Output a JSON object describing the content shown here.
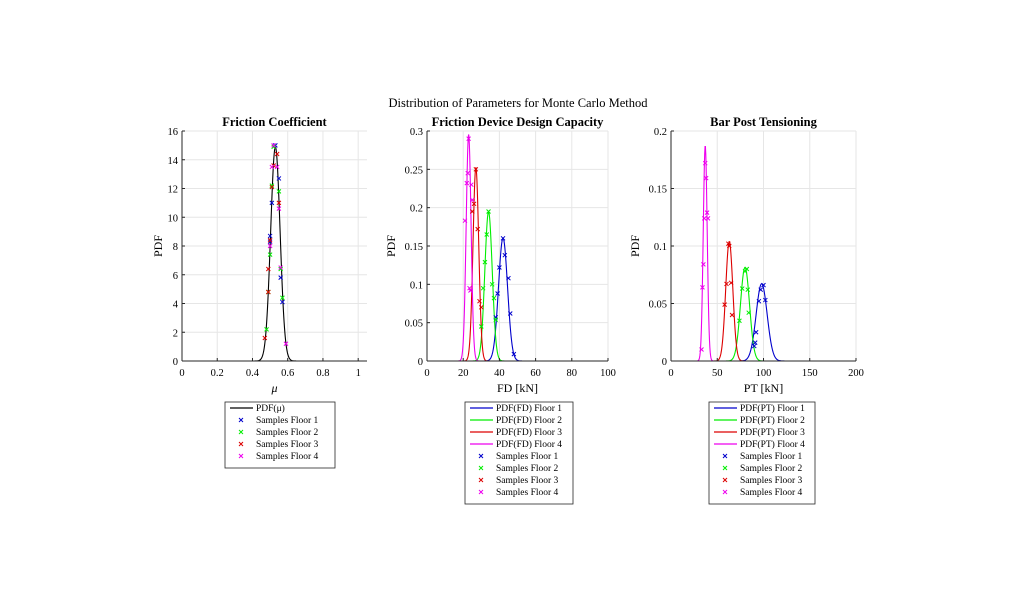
{
  "figure_title": "Distribution of Parameters for Monte Carlo Method",
  "colors": {
    "floor1": "#0000cc",
    "floor2": "#00ee00",
    "floor3": "#dd0000",
    "floor4": "#ee00ee",
    "mu": "#000000",
    "grid": "#e6e6e6"
  },
  "chart_data": [
    {
      "type": "line",
      "title": "Friction Coefficient",
      "xlabel": "μ",
      "ylabel": "PDF",
      "xlim": [
        0,
        1.05
      ],
      "ylim": [
        0,
        16
      ],
      "xticks": [
        0,
        0.2,
        0.4,
        0.6,
        0.8,
        1
      ],
      "xtick_labels": [
        "0",
        "0.2",
        "0.4",
        "0.6",
        "0.8",
        "1"
      ],
      "yticks": [
        0,
        2,
        4,
        6,
        8,
        10,
        12,
        14,
        16
      ],
      "ytick_labels": [
        "0",
        "2",
        "4",
        "6",
        "8",
        "10",
        "12",
        "14",
        "16"
      ],
      "grid": true,
      "series": [
        {
          "name": "PDF(μ)",
          "kind": "pdf",
          "color": "#000000",
          "mean": 0.53,
          "sd": 0.0268,
          "scale": 1,
          "range": [
            0,
            1.05
          ]
        }
      ],
      "samples": [
        {
          "name": "Samples Floor 1",
          "color": "#0000cc",
          "points": [
            [
              0.5,
              8.7
            ],
            [
              0.51,
              11.0
            ],
            [
              0.55,
              12.7
            ],
            [
              0.56,
              5.8
            ],
            [
              0.57,
              4.1
            ],
            [
              0.53,
              15.0
            ],
            [
              0.5,
              8.3
            ]
          ]
        },
        {
          "name": "Samples Floor 2",
          "color": "#00ee00",
          "points": [
            [
              0.48,
              2.2
            ],
            [
              0.49,
              4.8
            ],
            [
              0.5,
              7.4
            ],
            [
              0.51,
              12.2
            ],
            [
              0.55,
              11.8
            ],
            [
              0.56,
              6.4
            ],
            [
              0.57,
              4.4
            ],
            [
              0.52,
              14.9
            ]
          ]
        },
        {
          "name": "Samples Floor 3",
          "color": "#dd0000",
          "points": [
            [
              0.47,
              1.6
            ],
            [
              0.49,
              4.8
            ],
            [
              0.49,
              6.4
            ],
            [
              0.5,
              8.4
            ],
            [
              0.51,
              12.1
            ],
            [
              0.52,
              13.6
            ],
            [
              0.54,
              14.4
            ],
            [
              0.55,
              11.0
            ]
          ]
        },
        {
          "name": "Samples Floor 4",
          "color": "#ee00ee",
          "points": [
            [
              0.5,
              8.0
            ],
            [
              0.51,
              13.5
            ],
            [
              0.52,
              15.0
            ],
            [
              0.54,
              13.5
            ],
            [
              0.55,
              10.6
            ],
            [
              0.56,
              6.5
            ],
            [
              0.59,
              1.2
            ]
          ]
        }
      ],
      "legend": [
        "PDF(μ)",
        "Samples Floor 1",
        "Samples Floor 2",
        "Samples Floor 3",
        "Samples Floor 4"
      ]
    },
    {
      "type": "line",
      "title": "Friction Device Design Capacity",
      "xlabel": "FD [kN]",
      "ylabel": "PDF",
      "xlim": [
        0,
        100
      ],
      "ylim": [
        0,
        0.3
      ],
      "xticks": [
        0,
        20,
        40,
        60,
        80,
        100
      ],
      "xtick_labels": [
        "0",
        "20",
        "40",
        "60",
        "80",
        "100"
      ],
      "yticks": [
        0,
        0.05,
        0.1,
        0.15,
        0.2,
        0.25,
        0.3
      ],
      "ytick_labels": [
        "0",
        "0.05",
        "0.1",
        "0.15",
        "0.2",
        "0.25",
        "0.3"
      ],
      "grid": true,
      "series": [
        {
          "name": "PDF(FD) Floor 1",
          "kind": "pdf",
          "color": "#0000cc",
          "mean": 42,
          "sd": 2.49,
          "scale": 1,
          "range": [
            0,
            100
          ]
        },
        {
          "name": "PDF(FD) Floor 2",
          "kind": "pdf",
          "color": "#00ee00",
          "mean": 34,
          "sd": 2.05,
          "scale": 1,
          "range": [
            0,
            100
          ]
        },
        {
          "name": "PDF(FD) Floor 3",
          "kind": "pdf",
          "color": "#dd0000",
          "mean": 27,
          "sd": 1.58,
          "scale": 1,
          "range": [
            0,
            100
          ]
        },
        {
          "name": "PDF(FD) Floor 4",
          "kind": "pdf",
          "color": "#ee00ee",
          "mean": 23,
          "sd": 1.35,
          "scale": 1,
          "range": [
            0,
            100
          ]
        }
      ],
      "samples": [
        {
          "name": "Samples Floor 1",
          "color": "#0000cc",
          "points": [
            [
              38,
              0.057
            ],
            [
              39,
              0.088
            ],
            [
              40,
              0.122
            ],
            [
              42,
              0.16
            ],
            [
              43,
              0.138
            ],
            [
              45,
              0.108
            ],
            [
              46,
              0.062
            ],
            [
              48,
              0.009
            ]
          ]
        },
        {
          "name": "Samples Floor 2",
          "color": "#00ee00",
          "points": [
            [
              30,
              0.045
            ],
            [
              31,
              0.095
            ],
            [
              32,
              0.129
            ],
            [
              33,
              0.165
            ],
            [
              34,
              0.195
            ],
            [
              36,
              0.1
            ],
            [
              37,
              0.082
            ],
            [
              38,
              0.054
            ]
          ]
        },
        {
          "name": "Samples Floor 3",
          "color": "#dd0000",
          "points": [
            [
              25,
              0.195
            ],
            [
              26,
              0.205
            ],
            [
              27,
              0.25
            ],
            [
              28,
              0.172
            ],
            [
              29,
              0.078
            ],
            [
              30,
              0.07
            ]
          ]
        },
        {
          "name": "Samples Floor 4",
          "color": "#ee00ee",
          "points": [
            [
              21,
              0.183
            ],
            [
              22,
              0.232
            ],
            [
              22.5,
              0.245
            ],
            [
              23,
              0.29
            ],
            [
              24,
              0.092
            ],
            [
              24.5,
              0.23
            ],
            [
              25,
              0.21
            ],
            [
              23.5,
              0.095
            ]
          ]
        }
      ],
      "legend": [
        "PDF(FD) Floor 1",
        "PDF(FD) Floor 2",
        "PDF(FD) Floor 3",
        "PDF(FD) Floor 4",
        "Samples Floor 1",
        "Samples Floor 2",
        "Samples Floor 3",
        "Samples Floor 4"
      ]
    },
    {
      "type": "line",
      "title": "Bar Post Tensioning",
      "xlabel": "PT [kN]",
      "ylabel": "PDF",
      "xlim": [
        0,
        200
      ],
      "ylim": [
        0,
        0.2
      ],
      "xticks": [
        0,
        50,
        100,
        150,
        200
      ],
      "xtick_labels": [
        "0",
        "50",
        "100",
        "150",
        "200"
      ],
      "yticks": [
        0,
        0.05,
        0.1,
        0.15,
        0.2
      ],
      "ytick_labels": [
        "0",
        "0.05",
        "0.1",
        "0.15",
        "0.2"
      ],
      "grid": true,
      "series": [
        {
          "name": "PDF(PT) Floor 1",
          "kind": "pdf",
          "color": "#0000cc",
          "mean": 98,
          "sd": 5.94,
          "scale": 1,
          "range": [
            0,
            200
          ]
        },
        {
          "name": "PDF(PT) Floor 2",
          "kind": "pdf",
          "color": "#00ee00",
          "mean": 80,
          "sd": 4.9,
          "scale": 1,
          "range": [
            0,
            200
          ]
        },
        {
          "name": "PDF(PT) Floor 3",
          "kind": "pdf",
          "color": "#dd0000",
          "mean": 63,
          "sd": 3.84,
          "scale": 1,
          "range": [
            0,
            200
          ]
        },
        {
          "name": "PDF(PT) Floor 4",
          "kind": "pdf",
          "color": "#ee00ee",
          "mean": 37,
          "sd": 2.13,
          "scale": 1,
          "range": [
            0,
            200
          ]
        }
      ],
      "samples": [
        {
          "name": "Samples Floor 1",
          "color": "#0000cc",
          "points": [
            [
              90,
              0.013
            ],
            [
              91,
              0.016
            ],
            [
              92,
              0.025
            ],
            [
              95,
              0.052
            ],
            [
              97,
              0.062
            ],
            [
              100,
              0.066
            ],
            [
              102,
              0.053
            ]
          ]
        },
        {
          "name": "Samples Floor 2",
          "color": "#00ee00",
          "points": [
            [
              74,
              0.035
            ],
            [
              77,
              0.063
            ],
            [
              80,
              0.078
            ],
            [
              82,
              0.08
            ],
            [
              83,
              0.062
            ],
            [
              84,
              0.042
            ]
          ]
        },
        {
          "name": "Samples Floor 3",
          "color": "#dd0000",
          "points": [
            [
              58,
              0.049
            ],
            [
              60,
              0.067
            ],
            [
              62,
              0.102
            ],
            [
              63,
              0.1
            ],
            [
              65,
              0.068
            ],
            [
              66,
              0.04
            ]
          ]
        },
        {
          "name": "Samples Floor 4",
          "color": "#ee00ee",
          "points": [
            [
              33,
              0.01
            ],
            [
              34,
              0.064
            ],
            [
              35,
              0.084
            ],
            [
              36,
              0.124
            ],
            [
              37,
              0.172
            ],
            [
              38,
              0.159
            ],
            [
              39,
              0.129
            ],
            [
              40,
              0.124
            ]
          ]
        }
      ],
      "legend": [
        "PDF(PT) Floor 1",
        "PDF(PT) Floor 2",
        "PDF(PT) Floor 3",
        "PDF(PT) Floor 4",
        "Samples Floor 1",
        "Samples Floor 2",
        "Samples Floor 3",
        "Samples Floor 4"
      ]
    }
  ]
}
